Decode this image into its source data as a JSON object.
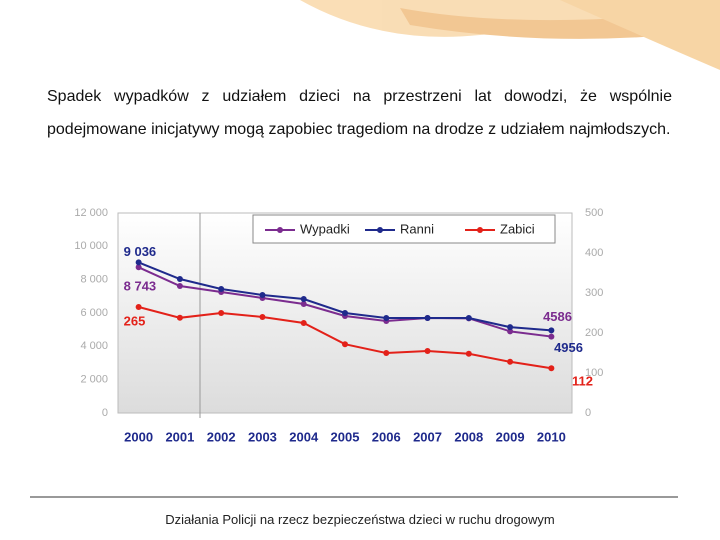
{
  "paragraph": "Spadek wypadków z udziałem dzieci na przestrzeni lat dowodzi, że wspólnie podejmowane inicjatywy mogą zapobiec tragediom na drodze z udziałem najmłodszych.",
  "footer": "Działania Policji na rzecz bezpieczeństwa dzieci w ruchu drogowym",
  "chart_data": {
    "type": "line",
    "categories": [
      "2000",
      "2001",
      "2002",
      "2003",
      "2004",
      "2005",
      "2006",
      "2007",
      "2008",
      "2009",
      "2010"
    ],
    "series": [
      {
        "name": "Wypadki",
        "color": "#7b2c8f",
        "values": [
          8743,
          7620,
          7260,
          6900,
          6540,
          5820,
          5520,
          5700,
          5680,
          4900,
          4586
        ],
        "value_labels": [
          "8 743",
          null,
          null,
          null,
          null,
          null,
          null,
          null,
          null,
          null,
          "4586"
        ]
      },
      {
        "name": "Ranni",
        "color": "#1f2a8c",
        "values": [
          9036,
          8040,
          7440,
          7080,
          6840,
          6000,
          5700,
          5700,
          5700,
          5150,
          4956
        ],
        "value_labels": [
          "9 036",
          null,
          null,
          null,
          null,
          null,
          null,
          null,
          null,
          null,
          "4956"
        ]
      },
      {
        "name": "Zabici",
        "color": "#e32119",
        "axis": "y2",
        "values": [
          265,
          238,
          250,
          240,
          225,
          172,
          150,
          155,
          148,
          128,
          112
        ]
      }
    ],
    "ylim": [
      0,
      12000
    ],
    "yticks": [
      0,
      {
        "value": 2000,
        "label": "2 000"
      },
      {
        "value": 4000,
        "label": "4 000"
      },
      {
        "value": 6000,
        "label": "6 000"
      },
      {
        "value": 8000,
        "label": "8 000"
      },
      {
        "value": 10000,
        "label": "10 000"
      },
      {
        "value": 12000,
        "label": "12 000"
      }
    ],
    "y2lim": [
      0,
      500
    ],
    "y2ticks": [
      0,
      100,
      200,
      300,
      400,
      500
    ]
  }
}
